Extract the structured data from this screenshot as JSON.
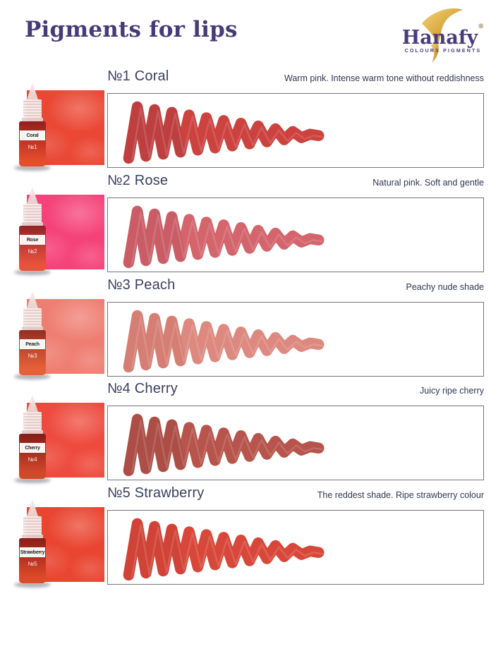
{
  "page": {
    "title": "Pigments for lips"
  },
  "logo": {
    "name": "Hanafy",
    "registered": "®",
    "tagline": "COLOURS PIGMENTS",
    "gold": "#d8a93c",
    "purple": "#4a3b7e"
  },
  "colors": {
    "heading": "#473a78",
    "product_title": "#3a4062",
    "description": "#303652",
    "box_border": "#74747c"
  },
  "products": [
    {
      "no": "№1",
      "name": "Coral",
      "title": "№1 Coral",
      "description": "Warm pink. Intense warm tone without reddishness",
      "swatch_color": "#ea4734",
      "stroke_color": "#cc423f",
      "stroke_dark": "#9e3942",
      "bottle_color": "#dd3f2b"
    },
    {
      "no": "№2",
      "name": "Rose",
      "title": "№2 Rose",
      "description": "Natural pink. Soft and gentle",
      "swatch_color": "#f5437a",
      "stroke_color": "#d4656c",
      "stroke_dark": "#b44a56",
      "bottle_color": "#e04840"
    },
    {
      "no": "№3",
      "name": "Peach",
      "title": "№3 Peach",
      "description": "Peachy nude shade",
      "swatch_color": "#ef7e72",
      "stroke_color": "#dd897f",
      "stroke_dark": "#c4685c",
      "bottle_color": "#de5a3a"
    },
    {
      "no": "№4",
      "name": "Cherry",
      "title": "№4 Cherry",
      "description": "Juicy ripe cherry",
      "swatch_color": "#ee4b3e",
      "stroke_color": "#b7544b",
      "stroke_dark": "#96423c",
      "bottle_color": "#c23a28"
    },
    {
      "no": "№5",
      "name": "Strawberry",
      "title": "№5 Strawberry",
      "description": "The reddest shade. Ripe strawberry colour",
      "swatch_color": "#e94531",
      "stroke_color": "#d8483a",
      "stroke_dark": "#bd372f",
      "bottle_color": "#d03c28"
    }
  ]
}
